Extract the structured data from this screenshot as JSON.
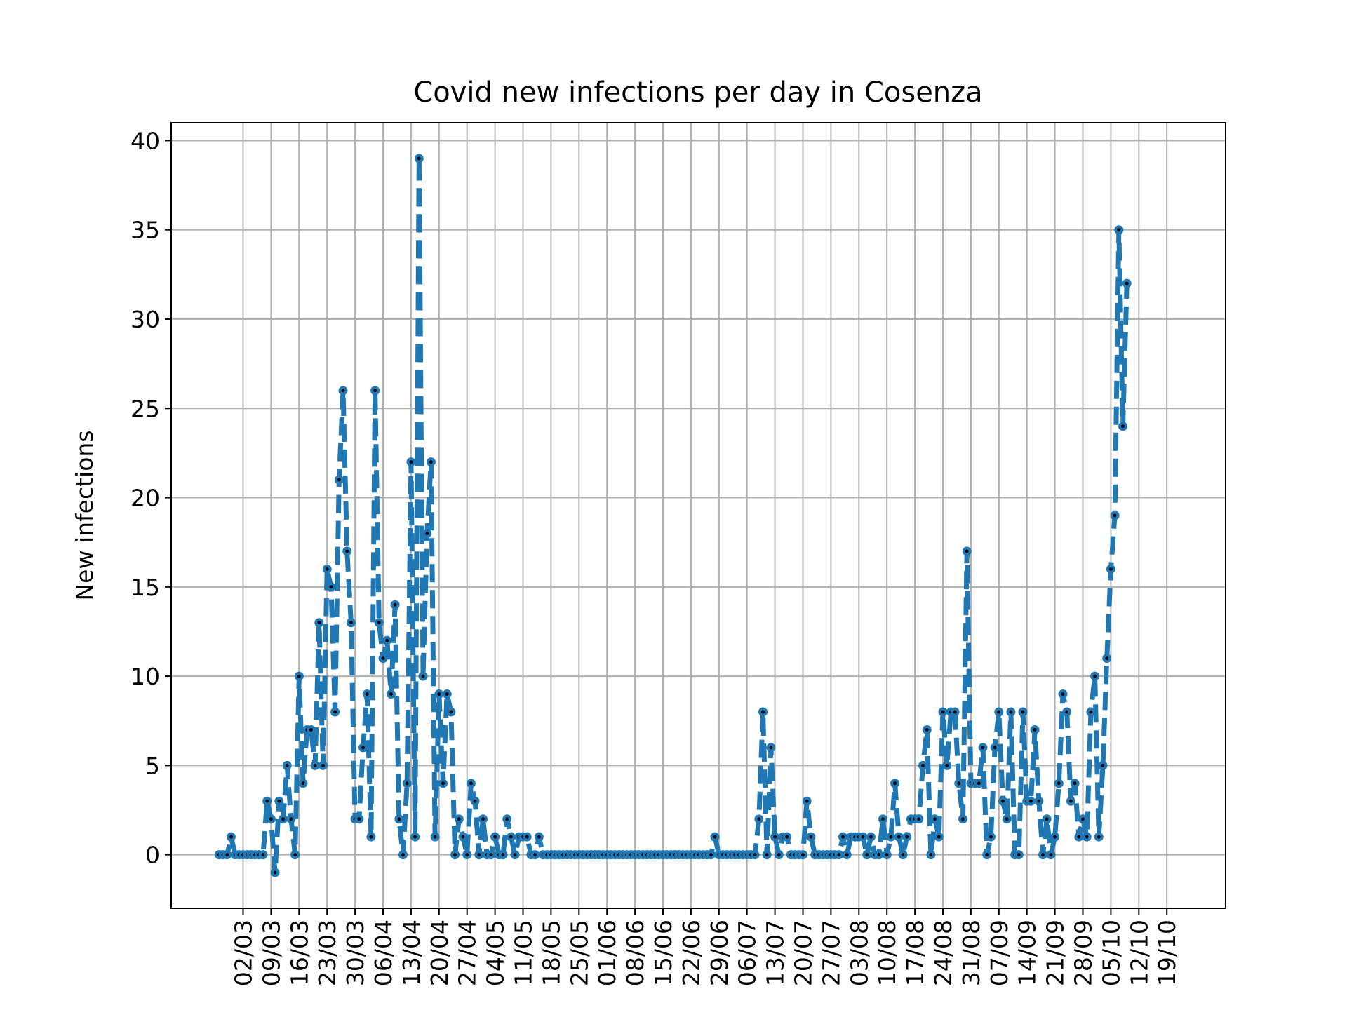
{
  "chart_data": {
    "type": "line",
    "title": "Covid new infections per day in Cosenza",
    "xlabel": "",
    "ylabel": "New infections",
    "ylim": [
      -3,
      41
    ],
    "yticks": [
      0,
      5,
      10,
      15,
      20,
      25,
      30,
      35,
      40
    ],
    "xticks": [
      "02/03",
      "09/03",
      "16/03",
      "23/03",
      "30/03",
      "06/04",
      "13/04",
      "20/04",
      "27/04",
      "04/05",
      "11/05",
      "18/05",
      "25/05",
      "01/06",
      "08/06",
      "15/06",
      "22/06",
      "29/06",
      "06/07",
      "13/07",
      "20/07",
      "27/07",
      "03/08",
      "10/08",
      "17/08",
      "24/08",
      "31/08",
      "07/09",
      "14/09",
      "21/09",
      "28/09",
      "05/10",
      "12/10",
      "19/10"
    ],
    "grid": true,
    "line_style": "dashed",
    "line_color": "#1f77b4",
    "marker_color": "#000000",
    "series": [
      {
        "start_day": -6,
        "values": [
          0,
          0,
          0,
          1,
          0,
          0,
          0,
          0,
          0,
          0,
          0,
          0,
          3,
          2,
          -1,
          3,
          2,
          5,
          2,
          0,
          10,
          4,
          7,
          7,
          5,
          13,
          5,
          16,
          15,
          8,
          21,
          26,
          17,
          13,
          2,
          2,
          6,
          9,
          1,
          26,
          13,
          11,
          12,
          9,
          14,
          2,
          0,
          4,
          22,
          1,
          39,
          10,
          18,
          22,
          1,
          9,
          4,
          9,
          8,
          0,
          2,
          1,
          0,
          4,
          3,
          0,
          2,
          0,
          0,
          1,
          0,
          0,
          2,
          1,
          0,
          1,
          1,
          1,
          0,
          0,
          1,
          0,
          0,
          0,
          0,
          0,
          0,
          0,
          0,
          0,
          0,
          0,
          0,
          0,
          0,
          0,
          0,
          0,
          0,
          0,
          0,
          0,
          0,
          0,
          0,
          0,
          0,
          0,
          0,
          0,
          0,
          0,
          0,
          0,
          0,
          0,
          0,
          0,
          0,
          0,
          0,
          0,
          0,
          0,
          1,
          0,
          0,
          0,
          0,
          0,
          0,
          0,
          0,
          0,
          0,
          2,
          8,
          0,
          6,
          1,
          0,
          1,
          1,
          0,
          0,
          0,
          0,
          3,
          1,
          0,
          0,
          0,
          0,
          0,
          0,
          0,
          1,
          0,
          1,
          1,
          1,
          1,
          0,
          1,
          0,
          0,
          2,
          0,
          1,
          4,
          1,
          0,
          1,
          2,
          2,
          2,
          5,
          7,
          0,
          2,
          1,
          8,
          5,
          8,
          8,
          4,
          2,
          17,
          4,
          4,
          4,
          6,
          0,
          1,
          6,
          8,
          3,
          2,
          8,
          0,
          0,
          8,
          3,
          3,
          7,
          3,
          0,
          2,
          0,
          1,
          4,
          9,
          8,
          3,
          4,
          1,
          2,
          1,
          8,
          10,
          1,
          5,
          11,
          16,
          19,
          35,
          24,
          32
        ]
      }
    ]
  }
}
